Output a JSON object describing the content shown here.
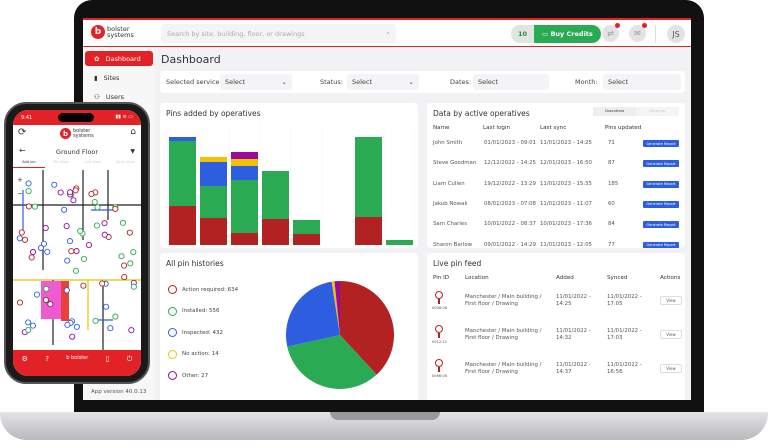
{
  "header": {
    "logo_text": "bolster systems",
    "search_placeholder": "Search by site, building, floor, or drawings",
    "credits": "10",
    "buy_credits": "Buy Credits",
    "avatar": "JS",
    "icons": [
      "search-icon",
      "sync-icon",
      "mail-icon"
    ]
  },
  "sidebar": {
    "items": [
      {
        "label": "Dashboard",
        "icon": "gear-icon",
        "active": true
      },
      {
        "label": "Sites",
        "icon": "building-icon"
      },
      {
        "label": "Users",
        "icon": "users-icon"
      }
    ],
    "app_version": "App version 40.0.13"
  },
  "page": {
    "title": "Dashboard"
  },
  "filters": {
    "service_label": "Selected service:",
    "service_value": "Select",
    "status_label": "Status:",
    "status_value": "Select",
    "dates_label": "Dates:",
    "dates_value": "Select",
    "month_label": "Month:",
    "month_value": "Select"
  },
  "colors": {
    "brand": "#e32227",
    "action_required": "#b22222",
    "installed": "#2aab53",
    "inspected": "#2e5ee0",
    "no_action": "#f2c200",
    "other": "#9a0a9a"
  },
  "chart_data": [
    {
      "type": "bar",
      "stacked": true,
      "title": "Pins added by operatives",
      "categories": [
        "",
        "",
        "",
        "",
        "",
        "",
        "",
        ""
      ],
      "series": [
        {
          "key": "action_required",
          "values": [
            39,
            27,
            12,
            26,
            11,
            0,
            28,
            0
          ]
        },
        {
          "key": "installed",
          "values": [
            65,
            32,
            53,
            48,
            14,
            0,
            80,
            5
          ]
        },
        {
          "key": "inspected",
          "values": [
            4,
            24,
            14,
            0,
            0,
            0,
            0,
            0
          ]
        },
        {
          "key": "no_action",
          "values": [
            0,
            5,
            7,
            0,
            0,
            0,
            0,
            0
          ]
        },
        {
          "key": "other",
          "values": [
            0,
            0,
            7,
            0,
            0,
            0,
            0,
            0
          ]
        }
      ],
      "grid": true,
      "axes_labels": false
    },
    {
      "type": "pie",
      "title": "All pin histories",
      "slices": [
        {
          "label": "Action required: 634",
          "value": 634,
          "key": "action_required"
        },
        {
          "label": "Installed: 556",
          "value": 556,
          "key": "installed"
        },
        {
          "label": "Inspected: 432",
          "value": 432,
          "key": "inspected"
        },
        {
          "label": "No action: 14",
          "value": 14,
          "key": "no_action"
        },
        {
          "label": "Other: 27",
          "value": 27,
          "key": "other"
        }
      ],
      "legend": "left"
    }
  ],
  "operatives": {
    "title": "Data by active operatives",
    "toggle": [
      "Operatives",
      "Drawings"
    ],
    "columns": [
      "Name",
      "Last login",
      "Last sync",
      "Pins updated"
    ],
    "button": "Generate Report",
    "rows": [
      [
        "John Smith",
        "01/01/2023 - 09:01",
        "11/01/2023 - 14:25",
        "71"
      ],
      [
        "Steve Goodman",
        "12/12/2022 - 14:25",
        "12/01/2023 - 16:50",
        "87"
      ],
      [
        "Liam Cullen",
        "19/12/2022 - 13:29",
        "11/01/2023 - 15:35",
        "185"
      ],
      [
        "Jakub Nowak",
        "08/01/2023 - 07:08",
        "11/01/2023 - 11:07",
        "60"
      ],
      [
        "Sam Charles",
        "10/01/2022 - 08:37",
        "10/01/2023 - 17:36",
        "84"
      ],
      [
        "Sharon Barlow",
        "09/01/2022 - 14:29",
        "11/01/2023 - 12:05",
        "77"
      ]
    ]
  },
  "feed": {
    "title": "Live pin feed",
    "columns": [
      "Pin ID",
      "Location",
      "Added",
      "Synced",
      "Actions"
    ],
    "button": "View",
    "rows": [
      [
        "0008:06",
        "Manchester / Main building /",
        "First floor / Drawing",
        "11/01/2022 -",
        "14:25",
        "11/01/2022 -",
        "17:05"
      ],
      [
        "0012:12",
        "Manchester / Main building /",
        "First floor / Drawing",
        "11/01/2022 -",
        "14:32",
        "11/01/2022 -",
        "17:03"
      ],
      [
        "0066:06",
        "Manchester / Main building /",
        "First floor / Drawing",
        "11/01/2022 -",
        "14:37",
        "11/01/2022 -",
        "16:56"
      ]
    ]
  },
  "phone": {
    "time": "9:41",
    "logo_text": "bolster systems",
    "title": "Ground Floor",
    "tabs": [
      "Add pin",
      "Pin View",
      "List View",
      "Zone View"
    ],
    "zoom_in": "+",
    "zoom_out": "−"
  }
}
